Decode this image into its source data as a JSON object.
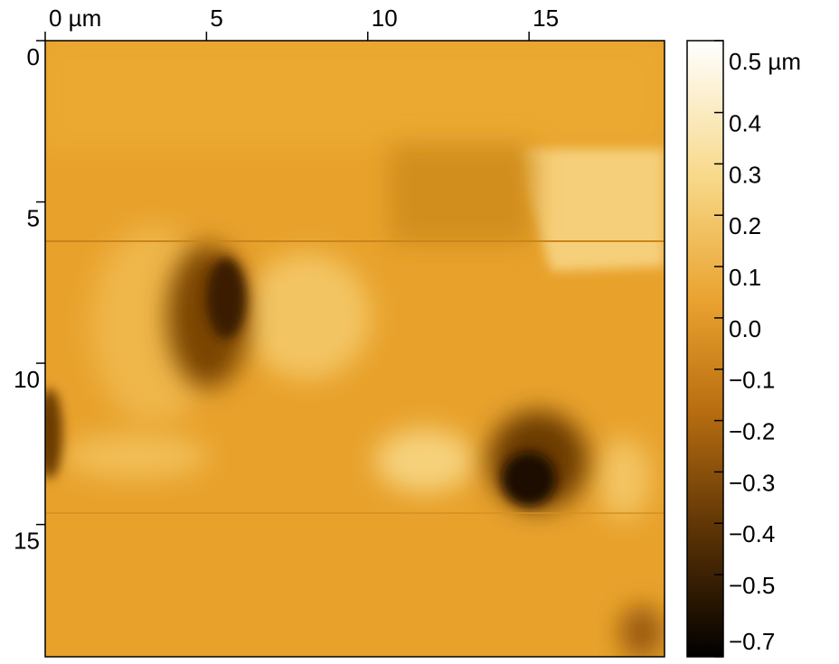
{
  "chart_data": {
    "type": "heatmap",
    "xlim": [
      0,
      19.2
    ],
    "xticks": [
      {
        "value": 0,
        "label": "0 µm"
      },
      5,
      10,
      15
    ],
    "ylim": [
      0,
      19.1
    ],
    "yticks": [
      0,
      5,
      10,
      15
    ],
    "colorbar": {
      "clim": [
        -0.66,
        0.54
      ],
      "ticks": [
        {
          "value": 0.54,
          "label": "0.5 µm"
        },
        0.4,
        0.3,
        0.2,
        0.1,
        {
          "value": 0,
          "label": "0.0"
        },
        {
          "value": -0.1,
          "label": "−0.1"
        },
        {
          "value": -0.2,
          "label": "−0.2"
        },
        {
          "value": -0.3,
          "label": "−0.3"
        },
        {
          "value": -0.4,
          "label": "−0.4"
        },
        {
          "value": -0.5,
          "label": "−0.5"
        },
        {
          "value": -0.66,
          "label": "−0.7"
        }
      ]
    }
  }
}
